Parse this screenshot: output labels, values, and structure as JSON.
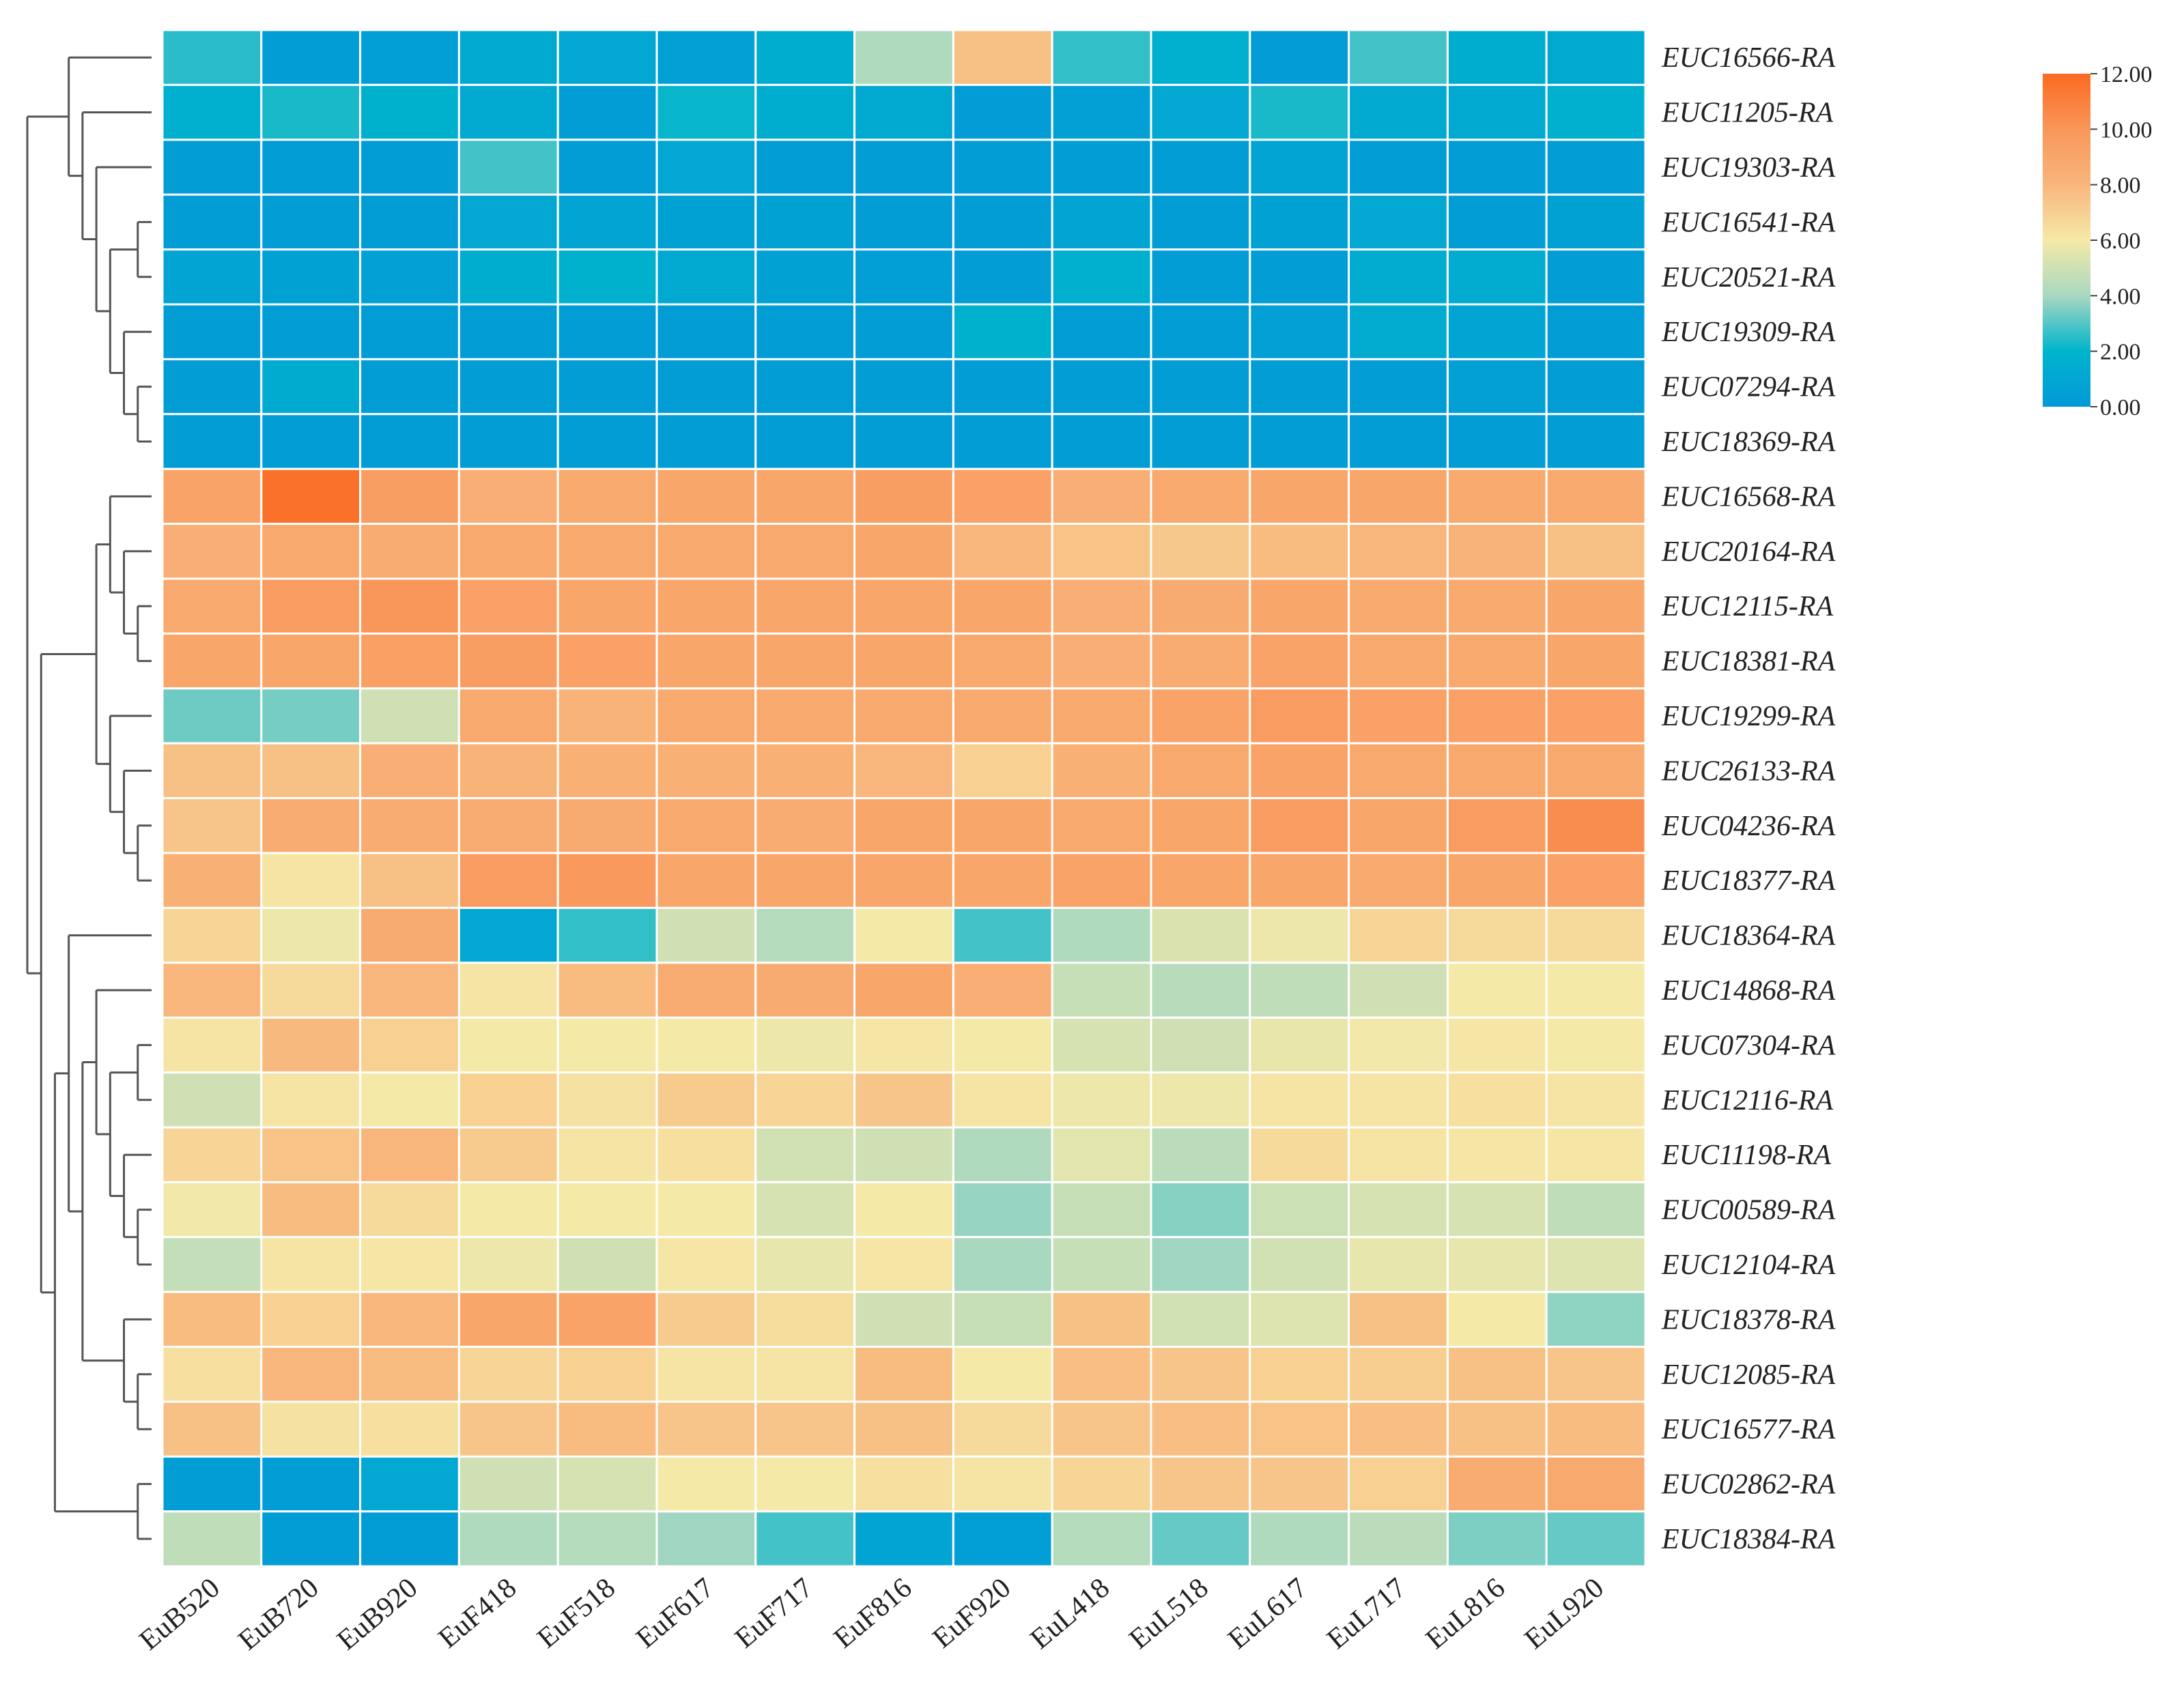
{
  "chart_data": {
    "type": "heatmap",
    "title": "",
    "xlabel": "",
    "ylabel": "",
    "columns": [
      "EuB520",
      "EuB720",
      "EuB920",
      "EuF418",
      "EuF518",
      "EuF617",
      "EuF717",
      "EuF816",
      "EuF920",
      "EuL418",
      "EuL518",
      "EuL617",
      "EuL717",
      "EuL816",
      "EuL920"
    ],
    "rows": [
      "EUC16566-RA",
      "EUC11205-RA",
      "EUC19303-RA",
      "EUC16541-RA",
      "EUC20521-RA",
      "EUC19309-RA",
      "EUC07294-RA",
      "EUC18369-RA",
      "EUC16568-RA",
      "EUC20164-RA",
      "EUC12115-RA",
      "EUC18381-RA",
      "EUC19299-RA",
      "EUC26133-RA",
      "EUC04236-RA",
      "EUC18377-RA",
      "EUC18364-RA",
      "EUC14868-RA",
      "EUC07304-RA",
      "EUC12116-RA",
      "EUC11198-RA",
      "EUC00589-RA",
      "EUC12104-RA",
      "EUC18378-RA",
      "EUC12085-RA",
      "EUC16577-RA",
      "EUC02862-RA",
      "EUC18384-RA"
    ],
    "values": [
      [
        2.5,
        0.3,
        0.4,
        1.2,
        1.0,
        0.5,
        1.5,
        4.2,
        7.6,
        2.6,
        1.6,
        0.2,
        2.8,
        1.5,
        1.2
      ],
      [
        1.6,
        2.3,
        1.8,
        1.2,
        0.3,
        2.1,
        1.5,
        1.2,
        0.2,
        0.5,
        1.0,
        2.3,
        1.2,
        1.2,
        1.6
      ],
      [
        0.3,
        0.3,
        0.3,
        2.8,
        0.3,
        1.0,
        0.3,
        0.3,
        0.3,
        0.3,
        0.3,
        0.8,
        0.3,
        0.3,
        0.3
      ],
      [
        0.3,
        0.3,
        0.3,
        1.0,
        0.8,
        0.6,
        0.6,
        0.3,
        0.3,
        0.8,
        0.3,
        0.6,
        1.0,
        0.3,
        0.6
      ],
      [
        0.8,
        0.6,
        0.5,
        1.5,
        1.8,
        1.2,
        0.6,
        0.4,
        0.3,
        1.7,
        0.3,
        0.3,
        1.4,
        1.4,
        0.3
      ],
      [
        0.3,
        0.3,
        0.3,
        0.3,
        0.3,
        0.3,
        0.3,
        0.3,
        1.8,
        0.3,
        0.3,
        0.5,
        1.4,
        0.8,
        0.3
      ],
      [
        0.3,
        1.3,
        0.3,
        0.3,
        0.3,
        0.3,
        0.3,
        0.3,
        0.3,
        0.3,
        0.3,
        0.3,
        0.3,
        0.5,
        0.3
      ],
      [
        0.3,
        0.3,
        0.3,
        0.3,
        0.3,
        0.3,
        0.3,
        0.3,
        0.3,
        0.3,
        0.3,
        0.3,
        0.3,
        0.3,
        0.3
      ],
      [
        9.2,
        11.7,
        9.5,
        8.5,
        8.8,
        9.0,
        9.0,
        9.5,
        9.3,
        8.5,
        8.8,
        9.0,
        9.0,
        8.8,
        8.8
      ],
      [
        8.5,
        8.8,
        8.6,
        8.8,
        8.8,
        8.8,
        8.8,
        9.0,
        8.0,
        7.5,
        7.3,
        7.8,
        8.0,
        8.2,
        7.6
      ],
      [
        8.8,
        9.6,
        10.0,
        9.3,
        9.0,
        9.0,
        9.0,
        9.0,
        9.0,
        8.5,
        8.7,
        9.0,
        8.8,
        8.8,
        9.0
      ],
      [
        9.0,
        9.0,
        9.4,
        9.5,
        9.3,
        9.0,
        9.0,
        9.0,
        8.8,
        8.5,
        8.6,
        9.2,
        8.8,
        8.8,
        9.0
      ],
      [
        3.3,
        3.4,
        5.0,
        8.8,
        8.2,
        8.8,
        8.8,
        8.8,
        8.8,
        8.8,
        9.2,
        9.6,
        9.3,
        9.3,
        9.3
      ],
      [
        7.6,
        7.6,
        8.5,
        8.2,
        8.4,
        8.4,
        8.4,
        8.0,
        7.0,
        8.4,
        8.8,
        9.2,
        8.8,
        8.8,
        8.8
      ],
      [
        7.4,
        8.6,
        8.6,
        8.6,
        8.7,
        8.8,
        8.6,
        9.0,
        9.0,
        8.8,
        9.0,
        9.6,
        9.0,
        9.6,
        10.4
      ],
      [
        8.4,
        6.2,
        7.6,
        9.6,
        9.8,
        9.0,
        9.0,
        9.0,
        9.0,
        9.2,
        9.0,
        9.0,
        8.8,
        9.0,
        9.3
      ],
      [
        6.8,
        5.8,
        8.7,
        1.0,
        2.6,
        5.0,
        4.3,
        6.0,
        2.8,
        4.2,
        5.3,
        5.8,
        6.8,
        6.6,
        6.6
      ],
      [
        8.0,
        6.6,
        8.0,
        6.2,
        7.8,
        8.6,
        8.7,
        9.0,
        8.5,
        4.8,
        4.4,
        4.6,
        5.0,
        6.0,
        6.0
      ],
      [
        6.2,
        7.9,
        7.0,
        6.0,
        6.0,
        6.0,
        5.8,
        6.1,
        6.0,
        5.2,
        5.0,
        5.7,
        5.9,
        6.1,
        6.0
      ],
      [
        5.0,
        6.2,
        6.0,
        7.0,
        6.3,
        7.2,
        6.8,
        7.4,
        6.2,
        5.8,
        5.8,
        6.2,
        6.2,
        6.4,
        6.2
      ],
      [
        6.8,
        7.5,
        8.0,
        7.2,
        6.2,
        6.4,
        5.1,
        5.0,
        4.2,
        5.5,
        4.5,
        6.6,
        6.2,
        6.1,
        6.1
      ],
      [
        5.9,
        7.8,
        6.6,
        6.0,
        6.0,
        6.0,
        5.2,
        6.0,
        3.8,
        4.8,
        3.6,
        4.9,
        5.2,
        5.2,
        4.6
      ],
      [
        4.7,
        6.2,
        6.1,
        5.8,
        5.0,
        6.1,
        5.6,
        6.1,
        4.0,
        4.8,
        3.9,
        5.1,
        5.6,
        5.6,
        5.4
      ],
      [
        7.8,
        7.0,
        8.0,
        9.0,
        9.2,
        7.2,
        6.5,
        5.0,
        4.8,
        7.6,
        5.1,
        5.4,
        7.6,
        6.0,
        3.7
      ],
      [
        6.4,
        8.0,
        7.8,
        6.8,
        7.0,
        6.2,
        6.2,
        7.8,
        6.0,
        7.7,
        7.4,
        7.0,
        7.1,
        7.6,
        7.4
      ],
      [
        7.6,
        6.3,
        6.4,
        7.4,
        7.8,
        7.4,
        7.4,
        7.6,
        6.6,
        7.4,
        7.7,
        7.5,
        7.7,
        7.6,
        7.8
      ],
      [
        0.3,
        0.3,
        1.0,
        5.0,
        5.2,
        6.0,
        6.0,
        6.4,
        6.2,
        6.8,
        7.4,
        7.4,
        7.0,
        8.6,
        8.8
      ],
      [
        4.6,
        0.3,
        0.3,
        4.2,
        4.3,
        3.9,
        2.8,
        0.8,
        0.4,
        4.3,
        3.2,
        4.2,
        4.5,
        3.5,
        3.2
      ]
    ],
    "color_scale": {
      "min": 0.0,
      "max": 12.0,
      "stops": [
        {
          "value": 0.0,
          "color": "#0399d8"
        },
        {
          "value": 2.0,
          "color": "#00b4cc"
        },
        {
          "value": 4.0,
          "color": "#a8d8c0"
        },
        {
          "value": 6.0,
          "color": "#f5e9a8"
        },
        {
          "value": 8.0,
          "color": "#f8b67c"
        },
        {
          "value": 10.0,
          "color": "#f9965a"
        },
        {
          "value": 12.0,
          "color": "#fa6a22"
        }
      ],
      "tick_labels": [
        "0.00",
        "2.00",
        "4.00",
        "6.00",
        "8.00",
        "10.00",
        "12.00"
      ]
    },
    "row_dendrogram": {
      "children": [
        {
          "children": [
            {
              "children": [
                {
                  "leaf": 0
                },
                {
                  "children": [
                    {
                      "leaf": 1
                    },
                    {
                      "children": [
                        {
                          "leaf": 2
                        },
                        {
                          "children": [
                            {
                              "children": [
                                {
                                  "leaf": 3
                                },
                                {
                                  "leaf": 4
                                }
                              ]
                            },
                            {
                              "children": [
                                {
                                  "leaf": 5
                                },
                                {
                                  "children": [
                                    {
                                      "leaf": 6
                                    },
                                    {
                                      "leaf": 7
                                    }
                                  ]
                                }
                              ]
                            }
                          ]
                        }
                      ]
                    }
                  ]
                }
              ]
            }
          ]
        },
        {
          "children": [
            {
              "children": [
                {
                  "children": [
                    {
                      "leaf": 8
                    },
                    {
                      "children": [
                        {
                          "leaf": 9
                        },
                        {
                          "children": [
                            {
                              "leaf": 10
                            },
                            {
                              "leaf": 11
                            }
                          ]
                        }
                      ]
                    }
                  ]
                },
                {
                  "children": [
                    {
                      "leaf": 12
                    },
                    {
                      "children": [
                        {
                          "leaf": 13
                        },
                        {
                          "children": [
                            {
                              "leaf": 14
                            },
                            {
                              "leaf": 15
                            }
                          ]
                        }
                      ]
                    }
                  ]
                }
              ]
            },
            {
              "children": [
                {
                  "children": [
                    {
                      "leaf": 16
                    },
                    {
                      "children": [
                        {
                          "children": [
                            {
                              "leaf": 17
                            },
                            {
                              "children": [
                                {
                                  "children": [
                                    {
                                      "leaf": 18
                                    },
                                    {
                                      "leaf": 19
                                    }
                                  ]
                                },
                                {
                                  "children": [
                                    {
                                      "leaf": 20
                                    },
                                    {
                                      "children": [
                                        {
                                          "leaf": 21
                                        },
                                        {
                                          "leaf": 22
                                        }
                                      ]
                                    }
                                  ]
                                }
                              ]
                            }
                          ]
                        },
                        {
                          "children": [
                            {
                              "leaf": 23
                            },
                            {
                              "children": [
                                {
                                  "leaf": 24
                                },
                                {
                                  "leaf": 25
                                }
                              ]
                            }
                          ]
                        }
                      ]
                    }
                  ]
                },
                {
                  "children": [
                    {
                      "leaf": 26
                    },
                    {
                      "leaf": 27
                    }
                  ]
                }
              ]
            }
          ]
        }
      ]
    }
  }
}
